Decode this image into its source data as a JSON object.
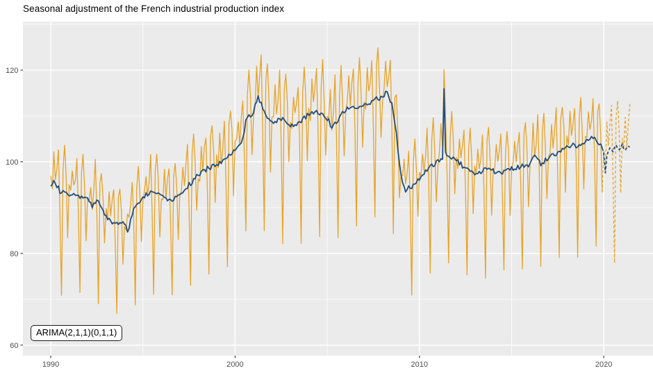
{
  "chart_data": {
    "type": "line",
    "title": "Seasonal adjustment of the French industrial production index",
    "annotation": {
      "text": "ARIMA(2,1,1)(0,1,1)",
      "position": "bottom-left"
    },
    "legend": "none",
    "grid": "on",
    "panel_background": "#EBEBEB",
    "grid_color": "#FFFFFF",
    "axis_text_color": "#4D4D4D",
    "tick_mark_color": "#333333",
    "title_color": "#000000",
    "x_axis": {
      "ticks": [
        1990,
        2000,
        2010,
        2020
      ],
      "labels": [
        "1990",
        "2000",
        "2010",
        "2020"
      ],
      "minor_ticks": [
        1995,
        2005,
        2015
      ],
      "range": [
        1988.49,
        2022.67
      ]
    },
    "y_axis": {
      "ticks": [
        60,
        80,
        100,
        120
      ],
      "labels": [
        "60",
        "80",
        "100",
        "120"
      ],
      "minor_ticks": [
        70,
        90,
        110,
        130
      ],
      "range": [
        57.7,
        130.6
      ]
    },
    "series": [
      {
        "id": "raw_index",
        "role": "observed",
        "color": "#E8A226",
        "style": "solid",
        "width": 1.3
      },
      {
        "id": "seasonally_adjusted",
        "role": "observed",
        "color": "#1F4C7C",
        "style": "solid",
        "width": 1.8
      },
      {
        "id": "raw_index_forecast",
        "role": "forecast",
        "color": "#E8A226",
        "style": "dashed",
        "width": 1.3
      },
      {
        "id": "seasonally_adjusted_forecast",
        "role": "forecast",
        "color": "#1F4C7C",
        "style": "dashed",
        "width": 1.8
      }
    ],
    "data": {
      "frequency": "monthly",
      "observed_start": 1990.0,
      "observed_end": 2019.917,
      "forecast_start": 2020.0,
      "forecast_end": 2021.417,
      "sa_trend_anchors": [
        [
          1990.0,
          95.0
        ],
        [
          1990.17,
          96.2
        ],
        [
          1990.5,
          93.5
        ],
        [
          1991.0,
          92.8
        ],
        [
          1991.5,
          92.3
        ],
        [
          1992.0,
          92.3
        ],
        [
          1992.25,
          89.8
        ],
        [
          1992.5,
          91.8
        ],
        [
          1993.0,
          88.0
        ],
        [
          1993.3,
          86.8
        ],
        [
          1993.7,
          86.5
        ],
        [
          1994.0,
          86.8
        ],
        [
          1994.17,
          84.8
        ],
        [
          1994.5,
          89.5
        ],
        [
          1995.0,
          92.5
        ],
        [
          1995.5,
          93.5
        ],
        [
          1996.0,
          93.0
        ],
        [
          1996.5,
          91.5
        ],
        [
          1997.0,
          93.0
        ],
        [
          1997.5,
          95.0
        ],
        [
          1998.0,
          97.0
        ],
        [
          1998.5,
          98.5
        ],
        [
          1999.0,
          99.5
        ],
        [
          1999.5,
          100.5
        ],
        [
          2000.0,
          103.0
        ],
        [
          2000.42,
          105.0
        ],
        [
          2000.58,
          109.0
        ],
        [
          2001.0,
          111.0
        ],
        [
          2001.25,
          114.0
        ],
        [
          2001.75,
          110.0
        ],
        [
          2002.0,
          108.5
        ],
        [
          2002.5,
          109.5
        ],
        [
          2003.0,
          108.0
        ],
        [
          2003.5,
          108.5
        ],
        [
          2004.0,
          110.5
        ],
        [
          2004.5,
          111.0
        ],
        [
          2005.0,
          109.5
        ],
        [
          2005.25,
          107.5
        ],
        [
          2006.0,
          111.5
        ],
        [
          2006.5,
          112.0
        ],
        [
          2007.0,
          112.0
        ],
        [
          2007.5,
          113.5
        ],
        [
          2008.0,
          114.0
        ],
        [
          2008.17,
          115.5
        ],
        [
          2008.5,
          112.5
        ],
        [
          2008.75,
          106.0
        ],
        [
          2009.0,
          97.0
        ],
        [
          2009.25,
          93.5
        ],
        [
          2009.42,
          94.8
        ],
        [
          2009.58,
          93.8
        ],
        [
          2009.75,
          95.5
        ],
        [
          2010.0,
          96.5
        ],
        [
          2010.5,
          98.5
        ],
        [
          2011.0,
          100.0
        ],
        [
          2011.25,
          101.0
        ],
        [
          2011.333,
          116.0
        ],
        [
          2011.417,
          102.0
        ],
        [
          2011.5,
          101.5
        ],
        [
          2012.0,
          100.5
        ],
        [
          2012.5,
          98.5
        ],
        [
          2013.0,
          97.5
        ],
        [
          2013.5,
          98.2
        ],
        [
          2014.0,
          98.0
        ],
        [
          2014.5,
          97.5
        ],
        [
          2015.0,
          98.5
        ],
        [
          2015.5,
          99.0
        ],
        [
          2016.0,
          99.5
        ],
        [
          2016.25,
          101.5
        ],
        [
          2016.58,
          99.5
        ],
        [
          2017.0,
          101.0
        ],
        [
          2017.5,
          102.0
        ],
        [
          2018.0,
          103.5
        ],
        [
          2018.5,
          103.5
        ],
        [
          2019.0,
          104.5
        ],
        [
          2019.5,
          105.5
        ],
        [
          2019.75,
          103.8
        ],
        [
          2019.917,
          103.0
        ]
      ],
      "sa_forecast_anchors": [
        [
          2020.0,
          102.0
        ],
        [
          2020.083,
          97.8
        ],
        [
          2020.167,
          101.5
        ],
        [
          2020.333,
          103.2
        ],
        [
          2020.5,
          102.3
        ],
        [
          2020.667,
          103.5
        ],
        [
          2020.833,
          102.4
        ],
        [
          2021.0,
          103.6
        ],
        [
          2021.167,
          102.6
        ],
        [
          2021.333,
          103.4
        ],
        [
          2021.417,
          103.2
        ]
      ],
      "seasonal_offsets_by_month": [
        0.5,
        0.0,
        6.0,
        1.0,
        4.0,
        8.5,
        -4.0,
        -23.5,
        5.5,
        9.5,
        3.0,
        -9.0
      ],
      "seasonal_scaling": "proportional_to_trend",
      "noise_amplitude": {
        "raw": 1.7,
        "sa": 0.55,
        "raw_forecast": 1.2,
        "sa_forecast": 0.3
      }
    }
  }
}
